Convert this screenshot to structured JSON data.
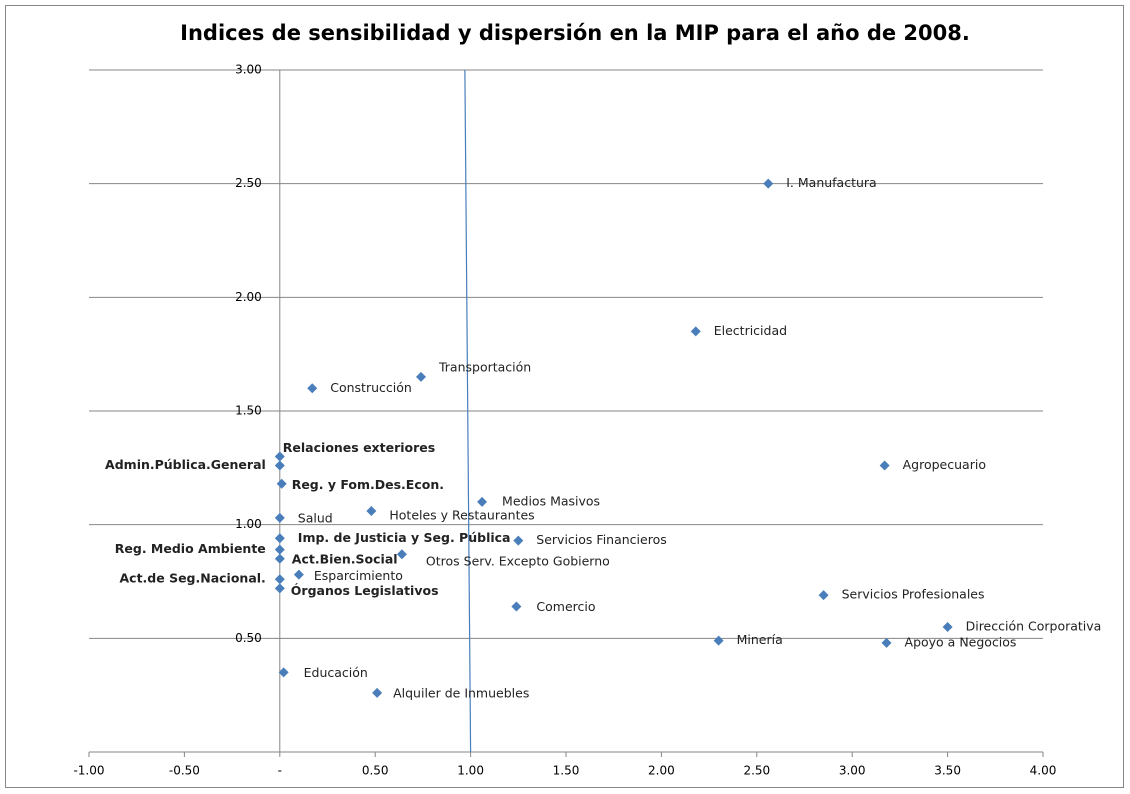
{
  "chart_data": {
    "type": "scatter",
    "title": "Indices de sensibilidad y dispersión en la MIP para el año de 2008.",
    "x": [
      2.56,
      2.18,
      0.74,
      0.17,
      0.0,
      0.0,
      3.17,
      0.01,
      1.06,
      0.48,
      0.0,
      0.0,
      1.25,
      0.0,
      0.64,
      0.0,
      0.1,
      0.0,
      0.0,
      2.85,
      1.24,
      3.5,
      2.3,
      3.18,
      0.02,
      0.51
    ],
    "series": [
      {
        "color": "#4a7ebb",
        "values": [
          2.5,
          1.85,
          1.65,
          1.6,
          1.3,
          1.26,
          1.26,
          1.18,
          1.1,
          1.06,
          1.03,
          0.94,
          0.93,
          0.89,
          0.87,
          0.85,
          0.78,
          0.76,
          0.72,
          0.69,
          0.64,
          0.55,
          0.49,
          0.48,
          0.35,
          0.26
        ]
      }
    ],
    "point_labels": [
      "I. Manufactura",
      "Electricidad",
      "Transportación",
      "Construcción",
      "Relaciones exteriores",
      "Admin.Pública.General",
      "Agropecuario",
      "Reg. y Fom.Des.Econ.",
      "Medios Masivos",
      "Hoteles y Restaurantes",
      "Salud",
      "Imp. de Justicia  y Seg. Pública",
      "Servicios Financieros",
      "Reg. Medio Ambiente",
      "Otros Serv. Excepto Gobierno",
      "Act.Bien.Social",
      "Esparcimiento",
      "Act.de Seg.Nacional.",
      "Órganos Legislativos",
      "Servicios Profesionales",
      "Comercio",
      "Dirección Corporativa",
      "Minería",
      "Apoyo a Negocios",
      "Educación",
      "Alquiler de Inmuebles"
    ],
    "reference_line": {
      "x": [
        0.97,
        1.0
      ],
      "y": [
        3,
        0
      ],
      "color": "#4a7ebb"
    },
    "xlim": [
      -1,
      4
    ],
    "ylim": [
      0,
      3
    ],
    "xticks": [
      {
        "value": -1,
        "label": "-1.00"
      },
      {
        "value": -0.5,
        "label": "-0.50"
      },
      {
        "value": 0,
        "label": "-"
      },
      {
        "value": 0.5,
        "label": "0.50"
      },
      {
        "value": 1,
        "label": "1.00"
      },
      {
        "value": 1.5,
        "label": "1.50"
      },
      {
        "value": 2,
        "label": "2.00"
      },
      {
        "value": 2.5,
        "label": "2.50"
      },
      {
        "value": 3,
        "label": "3.00"
      },
      {
        "value": 3.5,
        "label": "3.50"
      },
      {
        "value": 4,
        "label": "4.00"
      }
    ],
    "yticks": [
      {
        "value": 0.5,
        "label": "0.50"
      },
      {
        "value": 1,
        "label": "1.00"
      },
      {
        "value": 1.5,
        "label": "1.50"
      },
      {
        "value": 2,
        "label": "2.00"
      },
      {
        "value": 2.5,
        "label": "2.50"
      },
      {
        "value": 3,
        "label": "3.00"
      }
    ],
    "grid": true
  }
}
